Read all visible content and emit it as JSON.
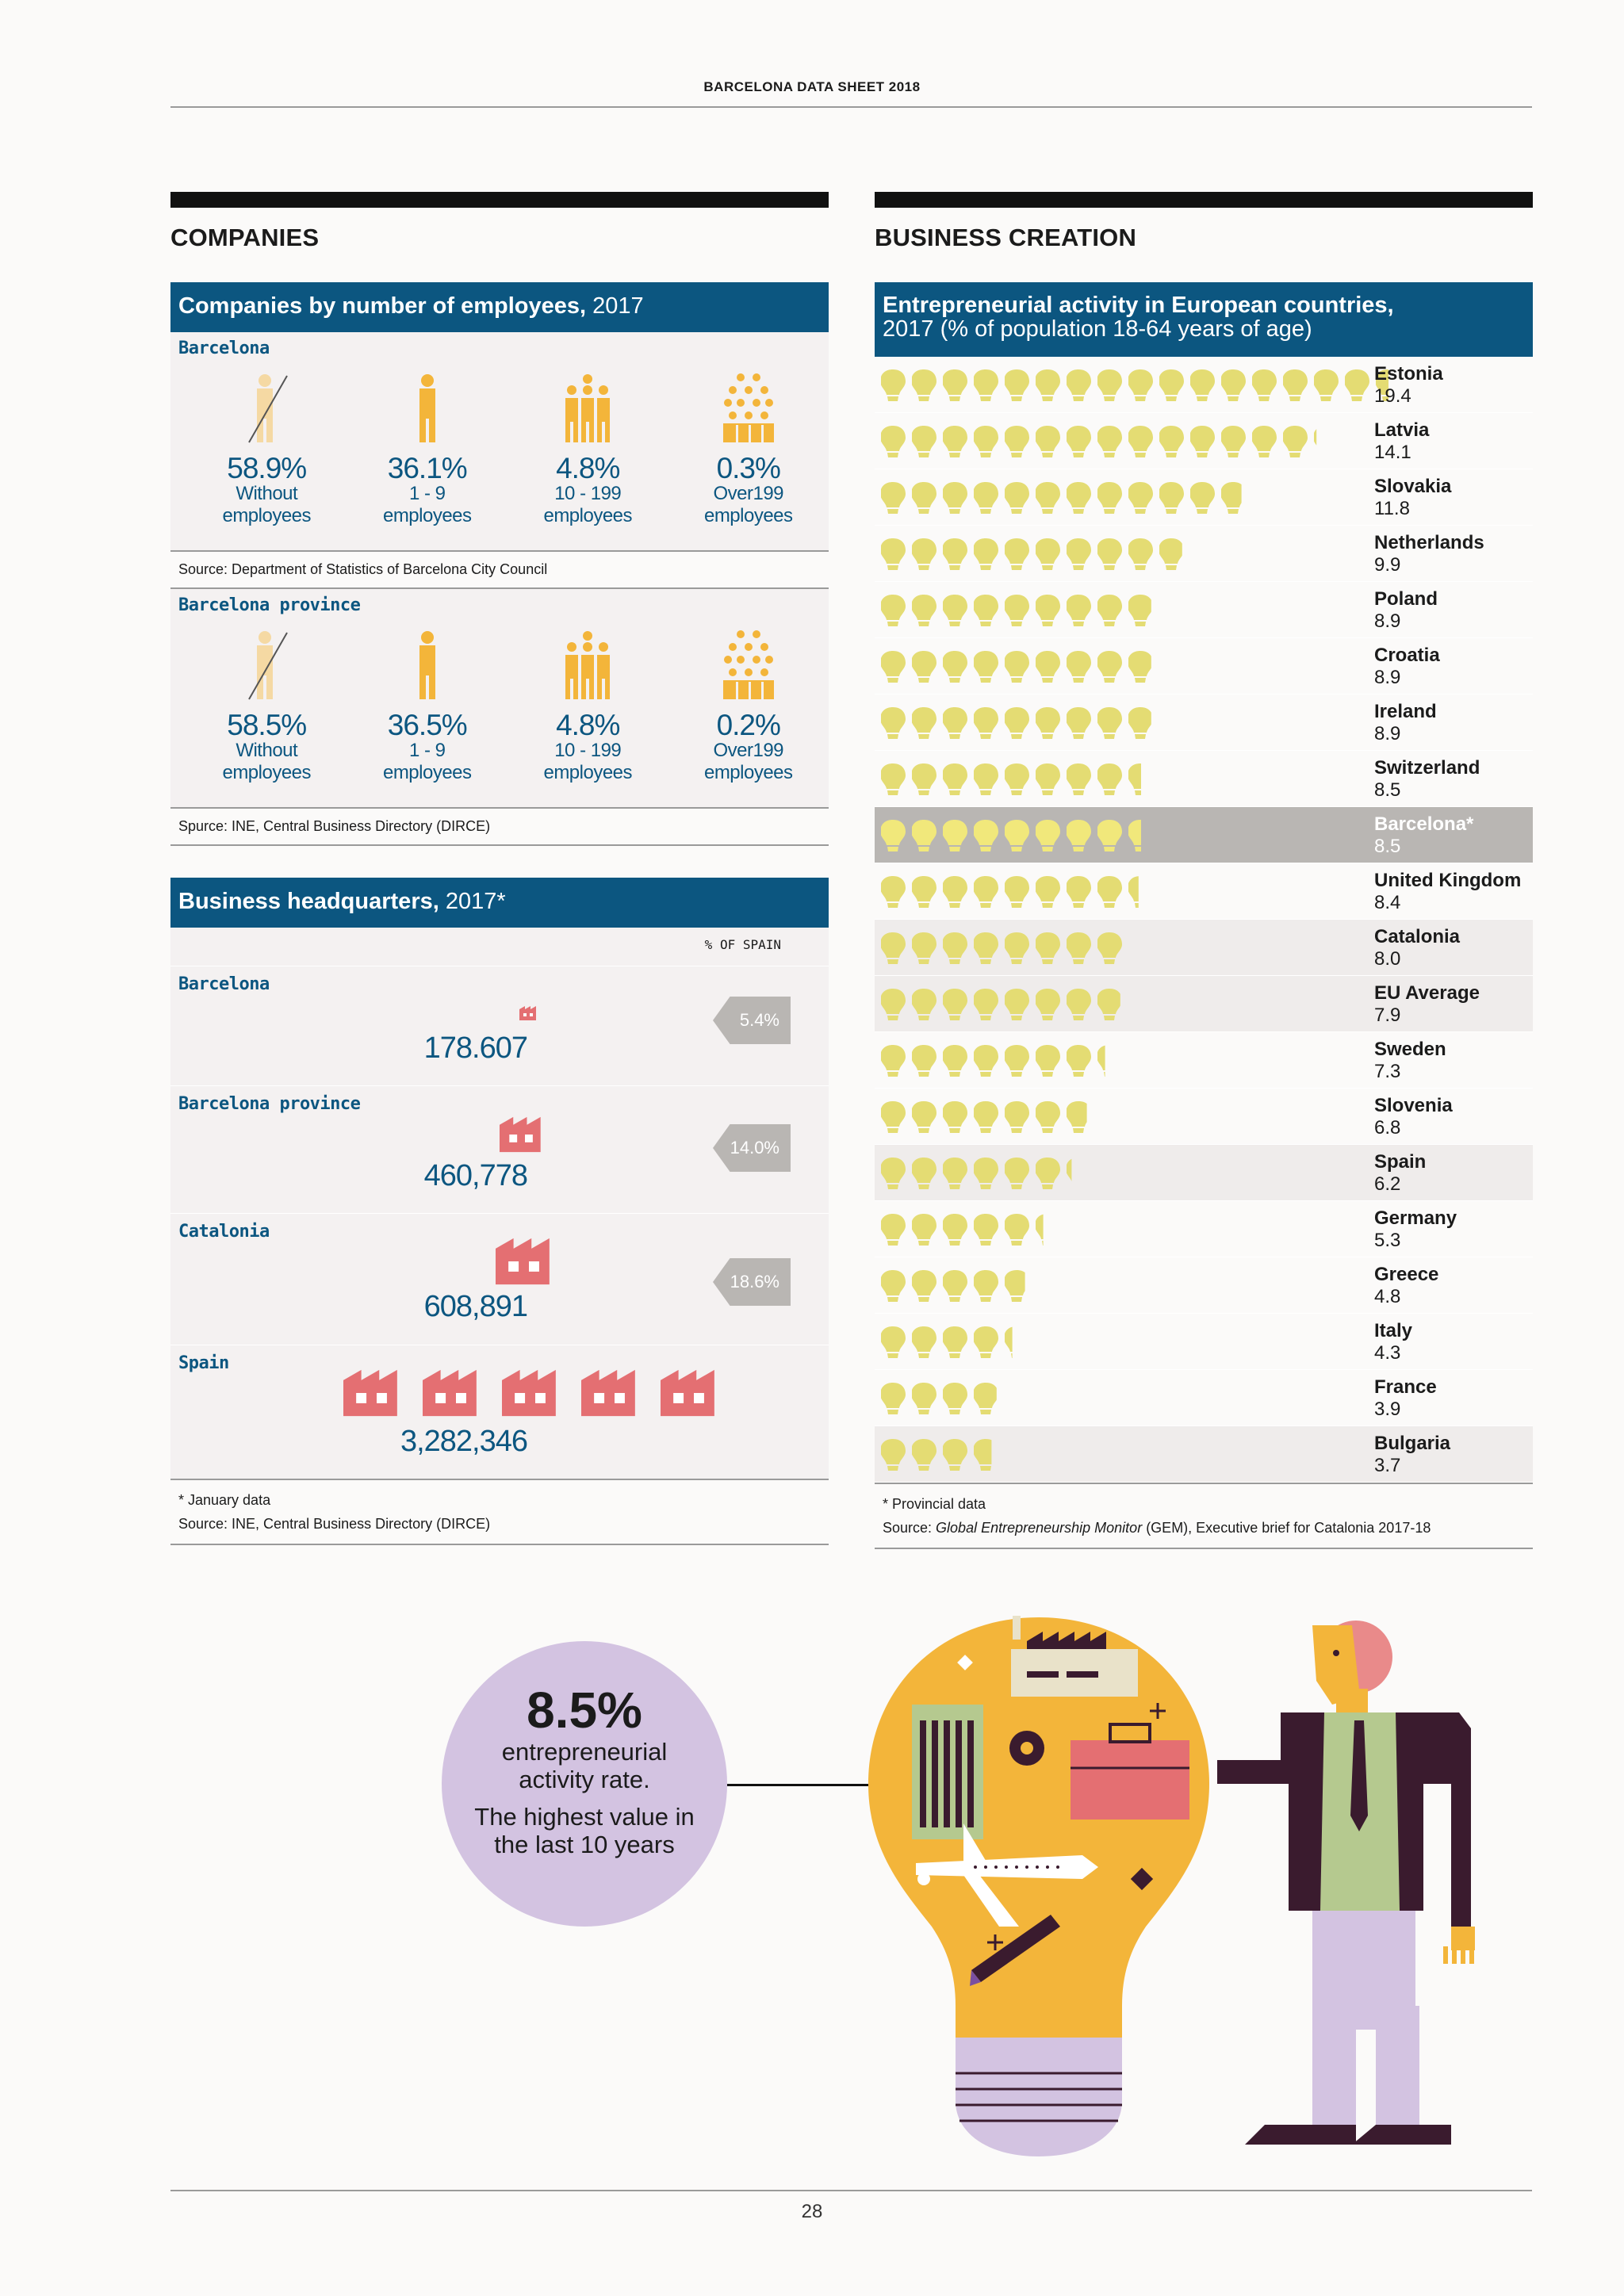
{
  "header": {
    "title": "BARCELONA DATA SHEET 2018"
  },
  "page_number": "28",
  "companies": {
    "section_title": "COMPANIES",
    "panel_title_bold": "Companies by number of employees,",
    "panel_title_year": " 2017",
    "barcelona": {
      "label": "Barcelona",
      "stats": [
        {
          "pct": "58.9%",
          "l1": "Without",
          "l2": "employees"
        },
        {
          "pct": "36.1%",
          "l1": "1 - 9",
          "l2": "employees"
        },
        {
          "pct": "4.8%",
          "l1": "10 - 199",
          "l2": "employees"
        },
        {
          "pct": "0.3%",
          "l1": "Over199",
          "l2": "employees"
        }
      ],
      "source": "Source: Department of Statistics of Barcelona City Council"
    },
    "province": {
      "label": "Barcelona province",
      "stats": [
        {
          "pct": "58.5%",
          "l1": "Without",
          "l2": "employees"
        },
        {
          "pct": "36.5%",
          "l1": "1 - 9",
          "l2": "employees"
        },
        {
          "pct": "4.8%",
          "l1": "10 - 199",
          "l2": "employees"
        },
        {
          "pct": "0.2%",
          "l1": "Over199",
          "l2": "employees"
        }
      ],
      "source": "Spurce: INE, Central Business Directory (DIRCE)"
    }
  },
  "headquarters": {
    "title_bold": "Business headquarters,",
    "title_rest": " 2017*",
    "col_label": "% OF SPAIN",
    "rows": [
      {
        "label": "Barcelona",
        "value": "178.607",
        "pct": "5.4%"
      },
      {
        "label": "Barcelona province",
        "value": "460,778",
        "pct": "14.0%"
      },
      {
        "label": "Catalonia",
        "value": "608,891",
        "pct": "18.6%"
      },
      {
        "label": "Spain",
        "value": "3,282,346",
        "pct": ""
      }
    ],
    "note": "* January data",
    "source": "Source: INE, Central Business Directory (DIRCE)"
  },
  "business_creation": {
    "section_title": "BUSINESS CREATION",
    "panel_title_line1": "Entrepreneurial activity in European countries,",
    "panel_title_line2": "2017 (% of population 18-64 years of age)",
    "note": "* Provincial data",
    "source_prefix": "Source: ",
    "source_italic": "Global Entrepreneurship Monitor",
    "source_suffix": " (GEM), Executive brief for Catalonia 2017-18"
  },
  "chart_data": {
    "type": "bar",
    "categories": [
      "Estonia",
      "Latvia",
      "Slovakia",
      "Netherlands",
      "Poland",
      "Croatia",
      "Ireland",
      "Switzerland",
      "Barcelona*",
      "United Kingdom",
      "Catalonia",
      "EU Average",
      "Sweden",
      "Slovenia",
      "Spain",
      "Germany",
      "Greece",
      "Italy",
      "France",
      "Bulgaria"
    ],
    "values": [
      19.4,
      14.1,
      11.8,
      9.9,
      8.9,
      8.9,
      8.9,
      8.5,
      8.5,
      8.4,
      8.0,
      7.9,
      7.3,
      6.8,
      6.2,
      5.3,
      4.8,
      4.3,
      3.9,
      3.7
    ],
    "value_labels": [
      "19.4",
      "14.1",
      "11.8",
      "9.9",
      "8.9",
      "8.9",
      "8.9",
      "8.5",
      "8.5",
      "8.4",
      "8.0",
      "7.9",
      "7.3",
      "6.8",
      "6.2",
      "5.3",
      "4.8",
      "4.3",
      "3.9",
      "3.7"
    ],
    "highlight": "Barcelona*",
    "colors": {
      "bulb": "#e4dc73",
      "highlight_bulb": "#f1e87b",
      "highlight_row": "#b9b6b3"
    }
  },
  "callout": {
    "big": "8.5%",
    "t1a": "entrepreneurial",
    "t1b": "activity rate.",
    "t2a": "The highest value in",
    "t2b": "the last 10 years"
  },
  "colors": {
    "blue": "#0c5680",
    "orange": "#f3b53a",
    "pink": "#e46f72",
    "lavender": "#d3c3e1",
    "gray_tag": "#b9b6b3"
  }
}
